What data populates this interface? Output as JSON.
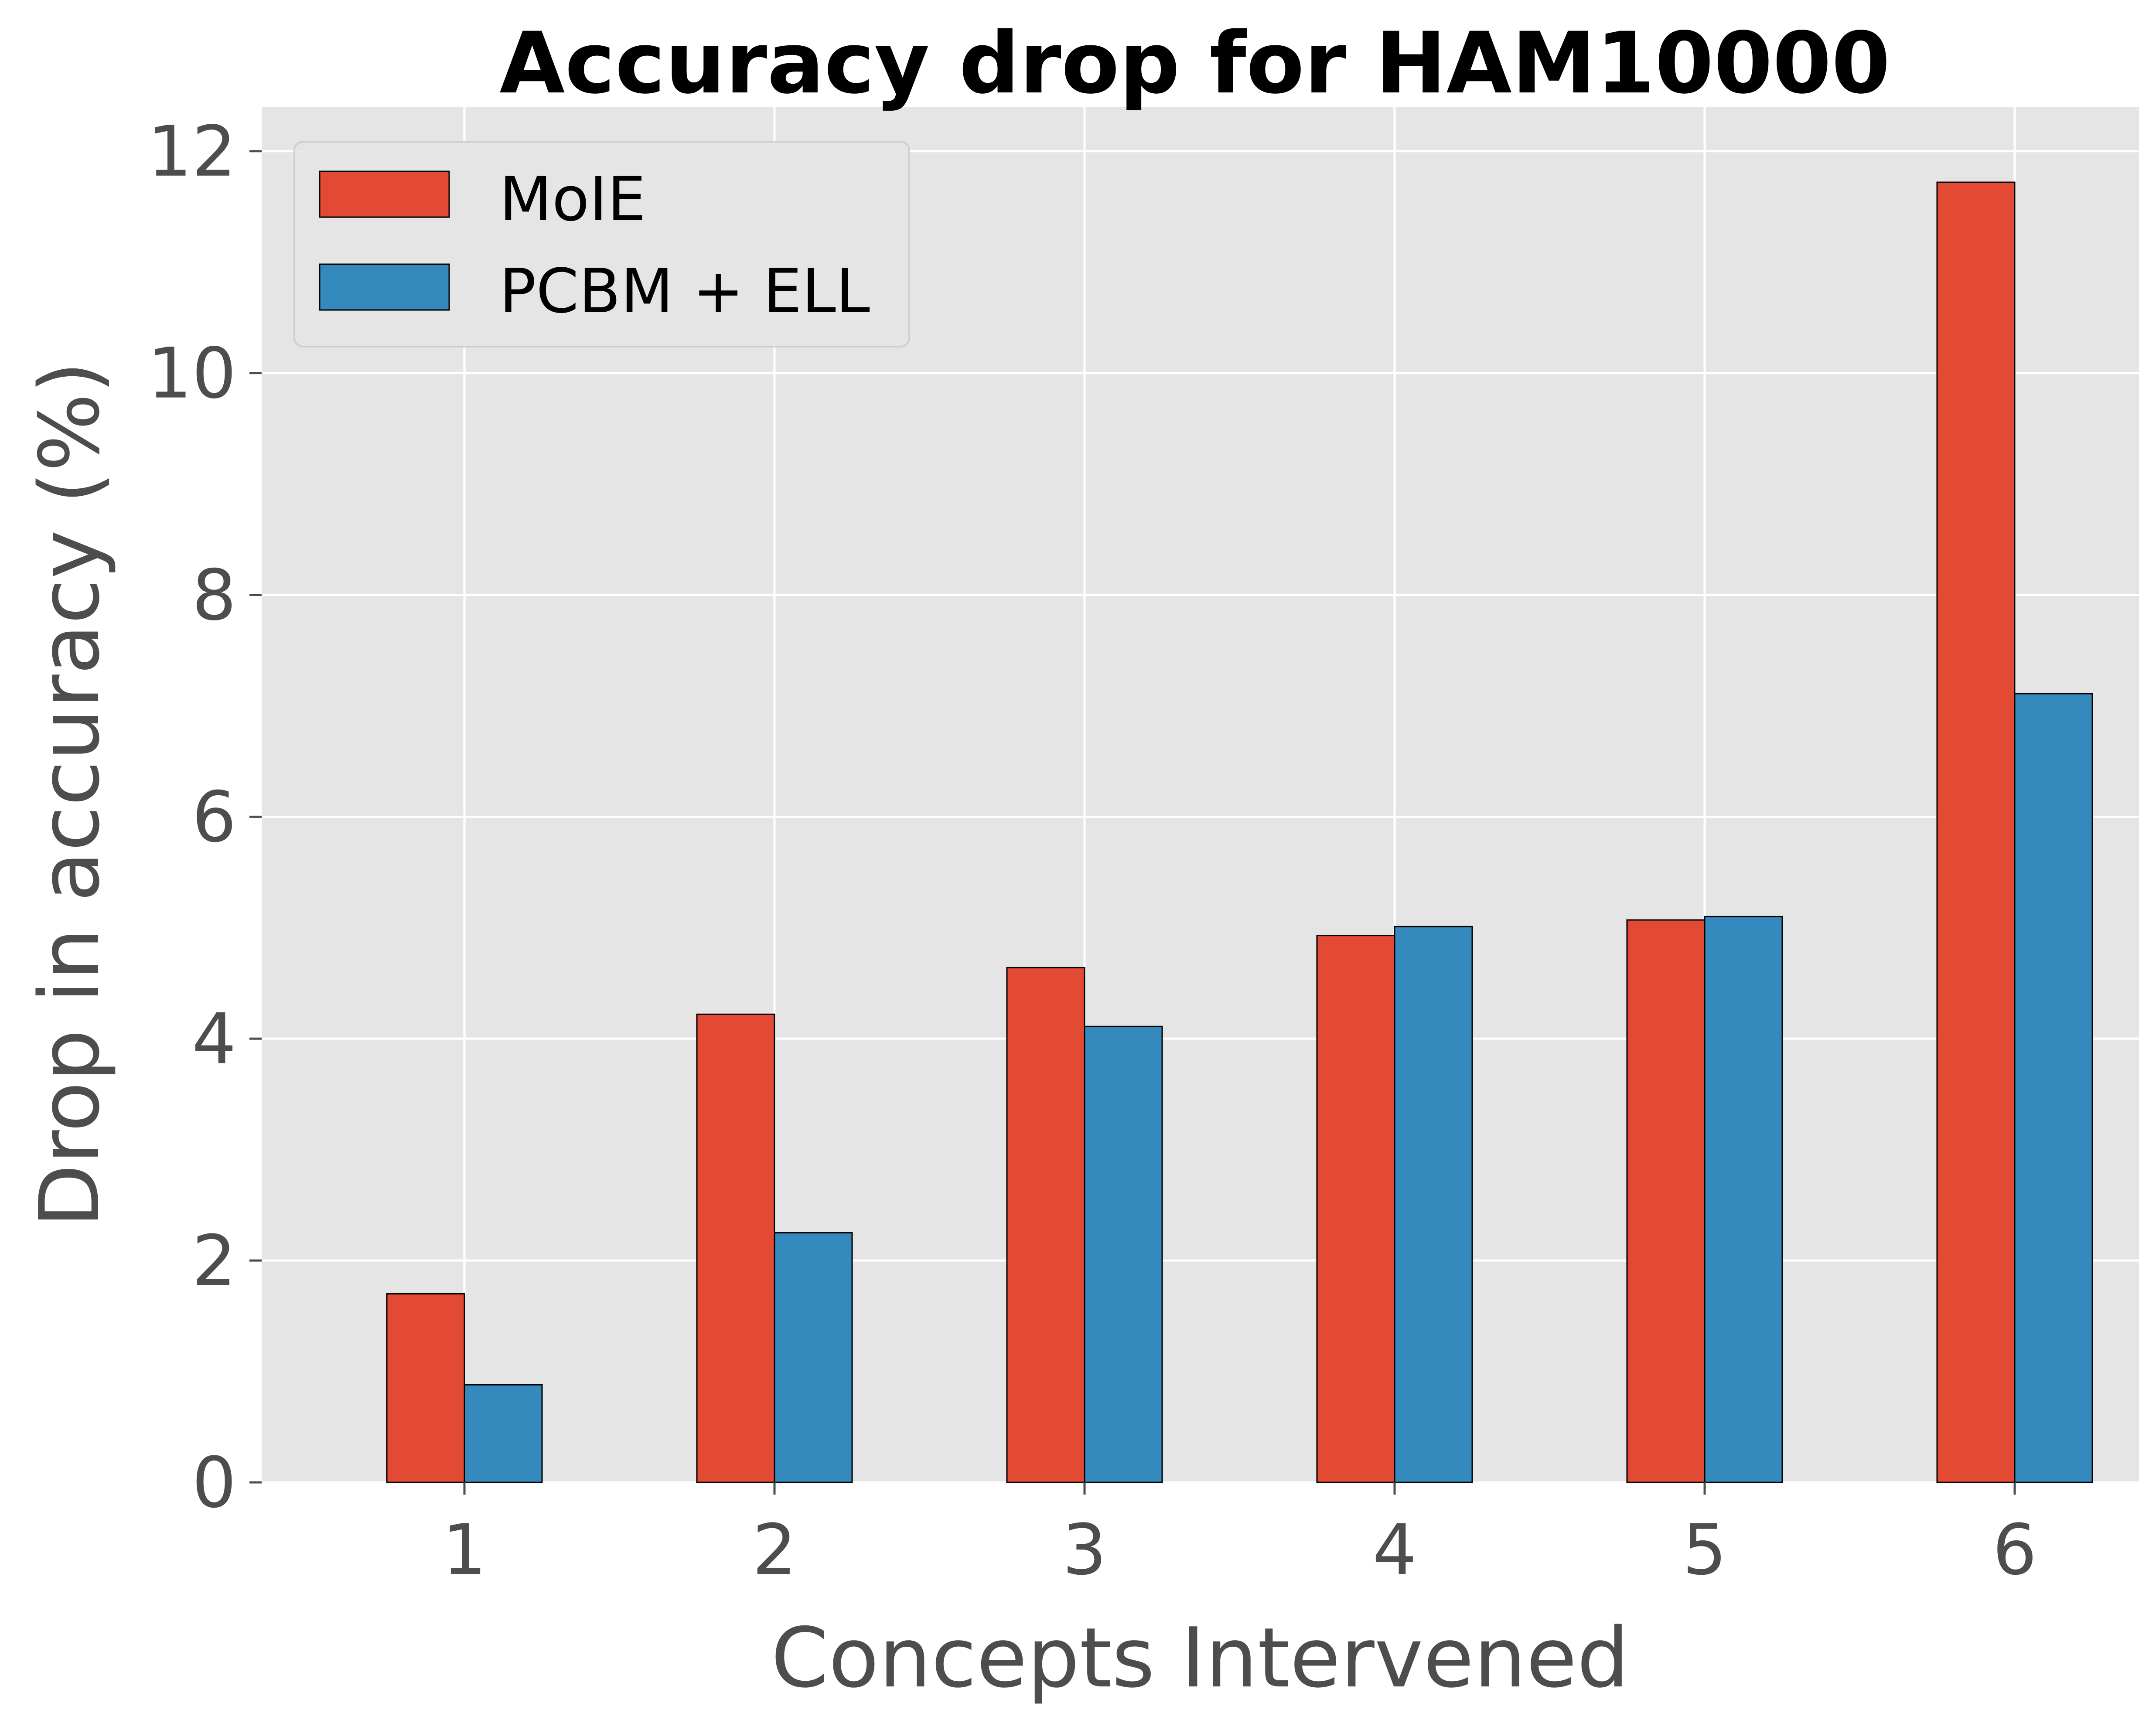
{
  "chart_data": {
    "type": "bar",
    "title": "Accuracy drop for HAM10000",
    "xlabel": "Concepts Intervened",
    "ylabel": "Drop in accuracy (%)",
    "categories": [
      "1",
      "2",
      "3",
      "4",
      "5",
      "6"
    ],
    "series": [
      {
        "name": "MoIE",
        "color": "#e24a33",
        "values": [
          1.7,
          4.22,
          4.64,
          4.93,
          5.07,
          11.72
        ]
      },
      {
        "name": "PCBM + ELL",
        "color": "#348abd",
        "values": [
          0.88,
          2.25,
          4.11,
          5.01,
          5.1,
          7.11
        ]
      }
    ],
    "ylim": [
      0,
      12.4
    ],
    "yticks": [
      0,
      2,
      4,
      6,
      8,
      10,
      12
    ],
    "grid": true,
    "legend": "top-left",
    "plot_background": "#e5e5e5",
    "grid_color": "#ffffff"
  }
}
